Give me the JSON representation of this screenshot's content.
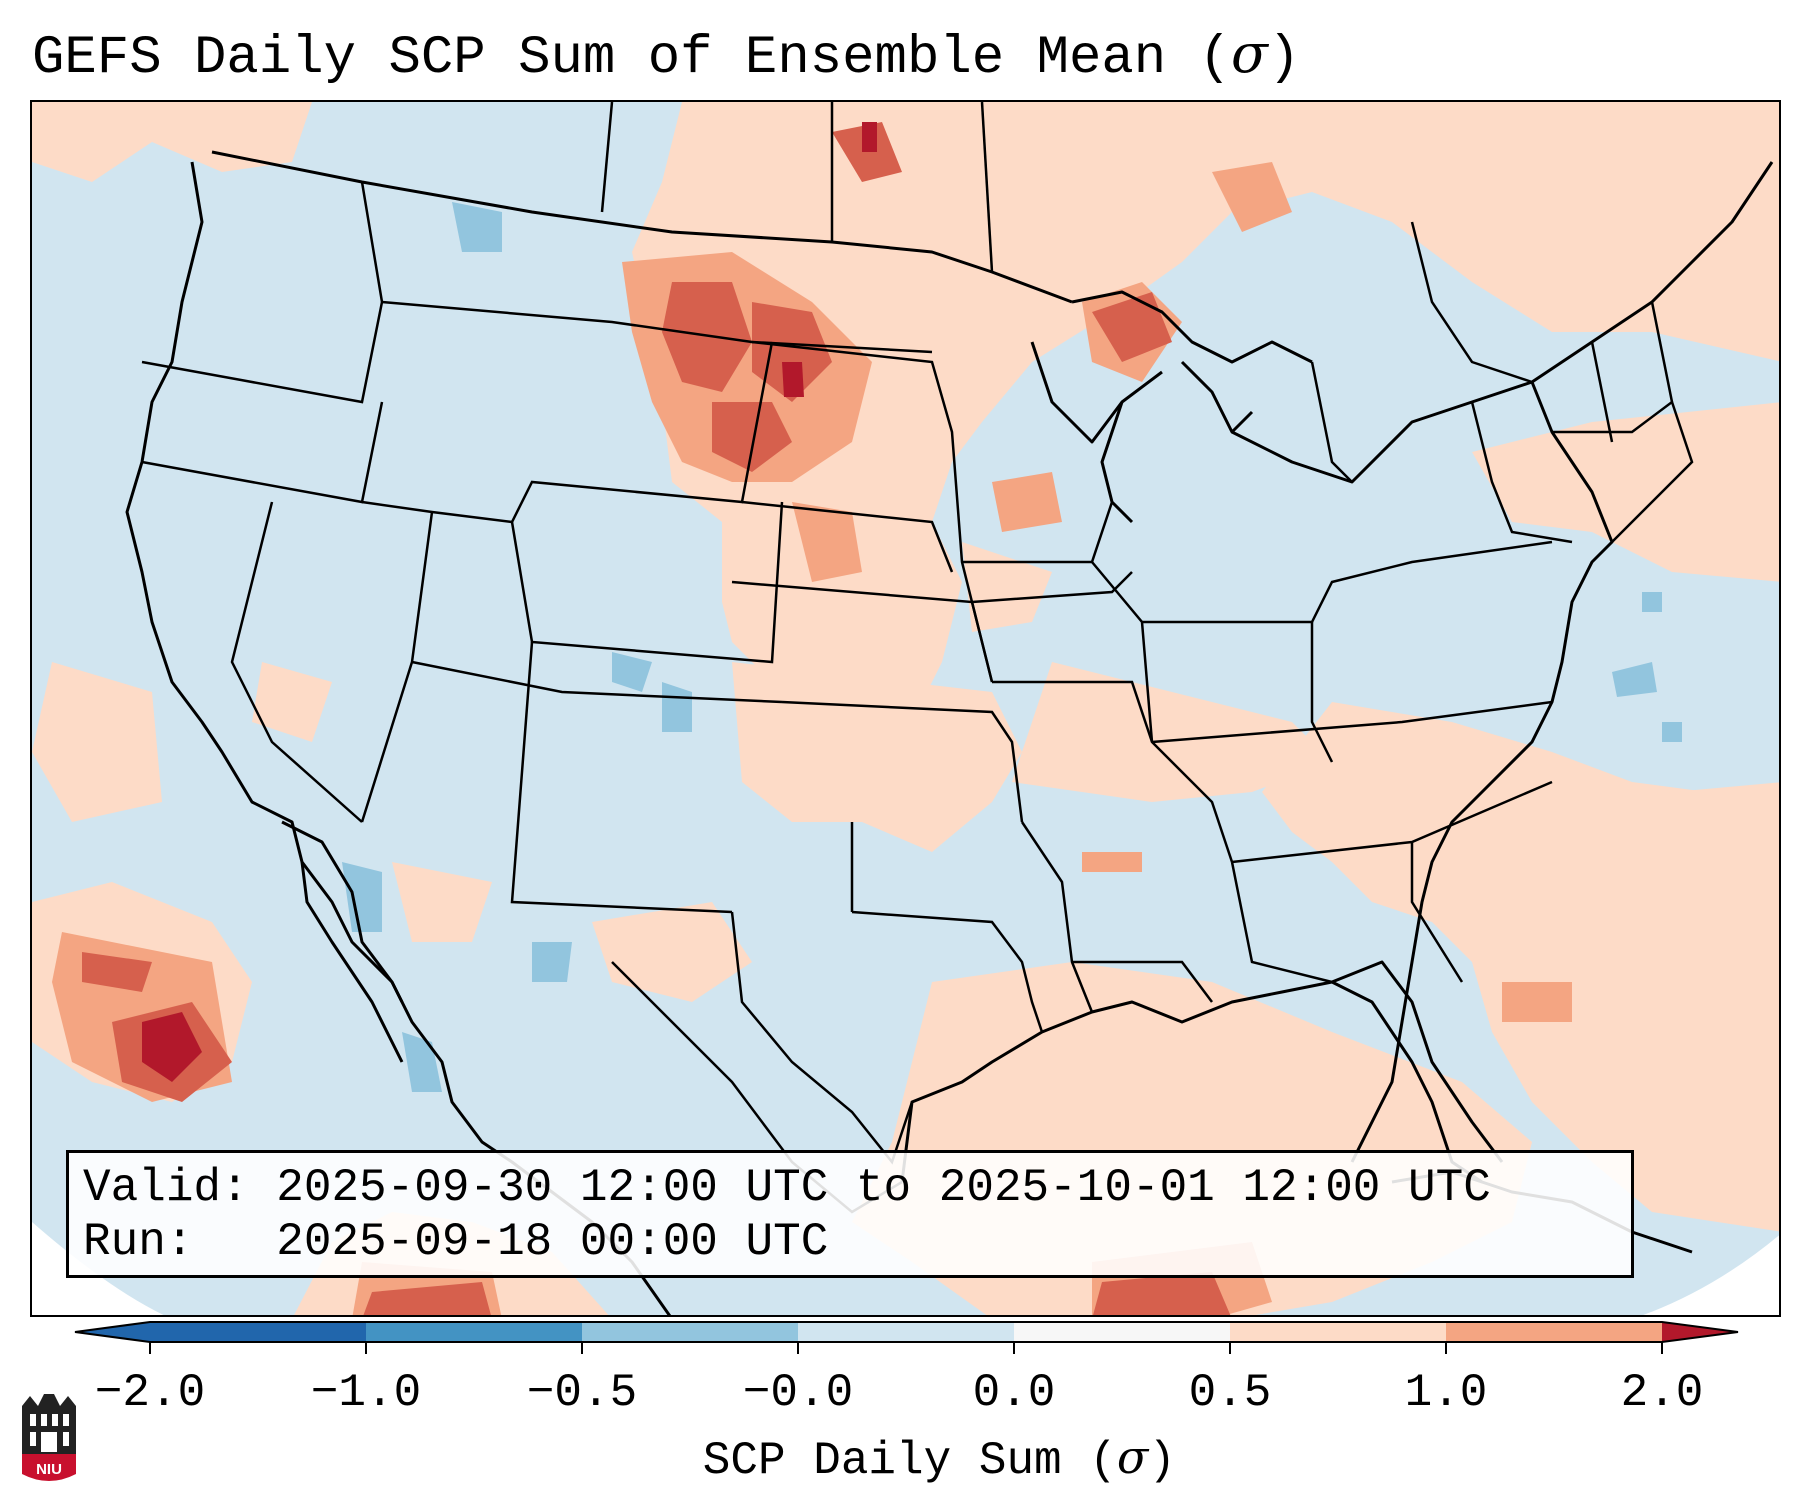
{
  "title": {
    "text": "GEFS Daily SCP Sum of Ensemble Mean (",
    "sigma": "σ",
    "close": ")"
  },
  "info": {
    "valid_line": "Valid: 2025-09-30 12:00 UTC to 2025-10-01 12:00 UTC",
    "run_line": "Run:   2025-09-18 00:00 UTC"
  },
  "colorbar": {
    "label_text": "SCP Daily Sum (",
    "label_sigma": "σ",
    "label_close": ")",
    "ticks": [
      "−2.0",
      "−1.0",
      "−0.5",
      "−0.0",
      "0.0",
      "0.5",
      "1.0",
      "2.0"
    ],
    "colors": [
      "#2166ac",
      "#4393c3",
      "#92c5de",
      "#d1e5f0",
      "#f7f7f7",
      "#fddbc7",
      "#f4a582",
      "#d6604d",
      "#b2182b"
    ]
  },
  "logo": {
    "text": "NIU"
  },
  "map": {
    "region": "Continental United States",
    "variable": "SCP daily sum anomaly (sigma)"
  }
}
